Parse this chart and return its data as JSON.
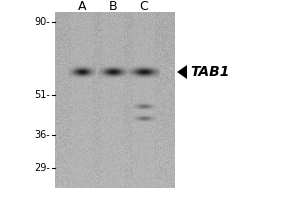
{
  "bg_color": "#ffffff",
  "gel_bg_color": "#a8a8a8",
  "fig_width": 3.0,
  "fig_height": 2.0,
  "dpi": 100,
  "lane_labels": [
    "A",
    "B",
    "C"
  ],
  "lane_label_fontsize": 9,
  "marker_labels": [
    "90-",
    "51-",
    "36-",
    "29-"
  ],
  "marker_fontsize": 7,
  "band_color": "#1a1a1a",
  "label_text": "TAB1",
  "label_fontsize": 10,
  "arrow_color": "#000000"
}
